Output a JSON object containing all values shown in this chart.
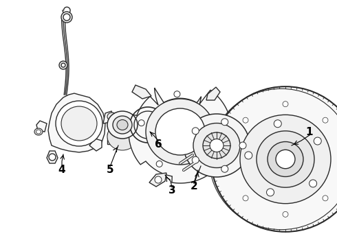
{
  "bg_color": "#ffffff",
  "line_color": "#2a2a2a",
  "line_width": 1.0,
  "fig_width": 4.9,
  "fig_height": 3.6,
  "dpi": 100,
  "xlim": [
    0,
    490
  ],
  "ylim": [
    0,
    360
  ]
}
